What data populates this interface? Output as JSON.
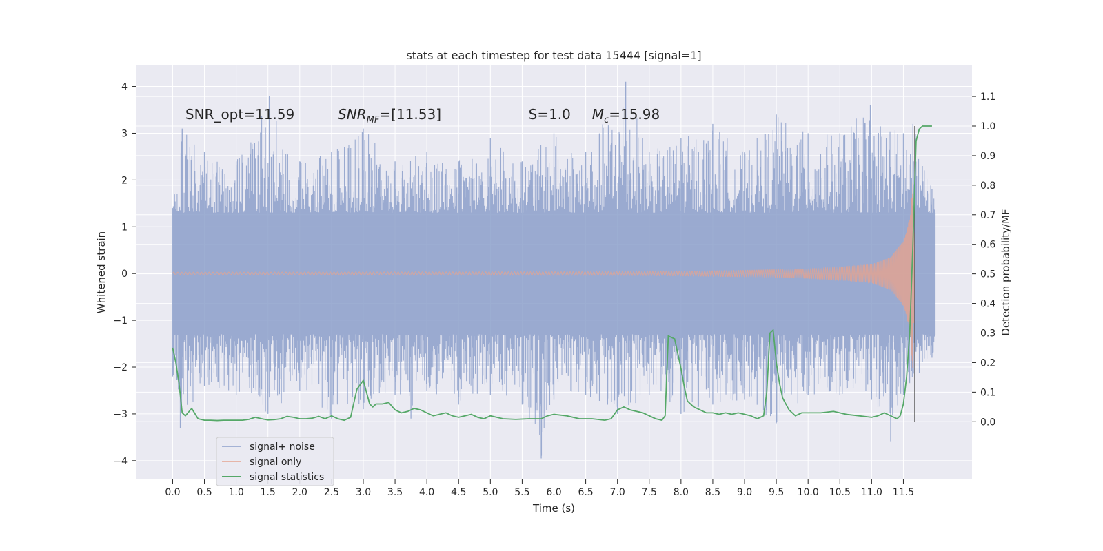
{
  "chart_data": {
    "type": "line",
    "title": "stats at each timestep for test data 15444 [signal=1]",
    "xlabel": "Time (s)",
    "ylabel": "Whitened strain",
    "ylabel_right": "Detection probability/MF",
    "xlim": [
      -0.58,
      12.58
    ],
    "ylim": [
      -4.4,
      4.45
    ],
    "ylim_right": [
      -0.195,
      1.205
    ],
    "x_ticks": [
      0.0,
      0.5,
      1.0,
      1.5,
      2.0,
      2.5,
      3.0,
      3.5,
      4.0,
      4.5,
      5.0,
      5.5,
      6.0,
      6.5,
      7.0,
      7.5,
      8.0,
      8.5,
      9.0,
      9.5,
      10.0,
      10.5,
      11.0,
      11.5
    ],
    "x_tick_labels": [
      "0.0",
      "0.5",
      "1.0",
      "1.5",
      "2.0",
      "2.5",
      "3.0",
      "3.5",
      "4.0",
      "4.5",
      "5.0",
      "5.5",
      "6.0",
      "6.5",
      "7.0",
      "7.5",
      "8.0",
      "8.5",
      "9.0",
      "9.5",
      "10.0",
      "10.5",
      "11.0",
      "11.5"
    ],
    "y_ticks": [
      -4,
      -3,
      -2,
      -1,
      0,
      1,
      2,
      3,
      4
    ],
    "y_tick_labels": [
      "−4",
      "−3",
      "−2",
      "−1",
      "0",
      "1",
      "2",
      "3",
      "4"
    ],
    "y_right_ticks": [
      0.0,
      0.1,
      0.2,
      0.3,
      0.4,
      0.5,
      0.6,
      0.7,
      0.8,
      0.9,
      1.0,
      1.1
    ],
    "y_right_tick_labels": [
      "0.0",
      "0.1",
      "0.2",
      "0.3",
      "0.4",
      "0.5",
      "0.6",
      "0.7",
      "0.8",
      "0.9",
      "1.0",
      "1.1"
    ],
    "grid": true,
    "legend_position": "lower-left",
    "annotations": [
      {
        "text": "SNR_opt=11.59",
        "x": 0.2,
        "y": 3.3
      },
      {
        "text": "SNR_MF=[11.53]",
        "x": 2.6,
        "y": 3.3
      },
      {
        "text": "S=1.0",
        "x": 5.6,
        "y": 3.3
      },
      {
        "text": "M_c=15.98",
        "x": 6.6,
        "y": 3.3
      }
    ],
    "vertical_line": {
      "x": 11.68,
      "y_range_right": [
        0.0,
        1.0
      ],
      "color": "#555555"
    },
    "series": [
      {
        "name": "signal+ noise",
        "axis": "left",
        "kind": "noise-band",
        "color": "#8da0cb",
        "time_range": [
          0.0,
          12.0
        ],
        "band_core": [
          -1.3,
          1.3
        ],
        "envelope_upper": [
          [
            0.0,
            1.4
          ],
          [
            0.15,
            3.1
          ],
          [
            0.5,
            2.6
          ],
          [
            1.0,
            2.4
          ],
          [
            1.52,
            3.8
          ],
          [
            2.0,
            2.4
          ],
          [
            2.5,
            2.6
          ],
          [
            3.0,
            3.1
          ],
          [
            3.5,
            2.4
          ],
          [
            4.0,
            2.6
          ],
          [
            4.5,
            2.4
          ],
          [
            5.0,
            2.9
          ],
          [
            5.5,
            2.4
          ],
          [
            6.0,
            3.0
          ],
          [
            6.5,
            2.6
          ],
          [
            7.13,
            4.1
          ],
          [
            7.5,
            2.6
          ],
          [
            8.0,
            2.9
          ],
          [
            8.5,
            3.2
          ],
          [
            9.0,
            2.6
          ],
          [
            9.5,
            3.4
          ],
          [
            10.0,
            3.0
          ],
          [
            10.5,
            3.0
          ],
          [
            10.98,
            3.6
          ],
          [
            11.5,
            3.0
          ],
          [
            11.65,
            3.2
          ],
          [
            11.95,
            1.8
          ]
        ],
        "envelope_lower": [
          [
            0.0,
            -2.2
          ],
          [
            0.12,
            -3.3
          ],
          [
            0.5,
            -2.4
          ],
          [
            1.0,
            -2.6
          ],
          [
            1.5,
            -3.0
          ],
          [
            2.0,
            -2.5
          ],
          [
            2.5,
            -3.1
          ],
          [
            3.0,
            -2.9
          ],
          [
            3.5,
            -2.6
          ],
          [
            3.75,
            -3.1
          ],
          [
            4.0,
            -2.5
          ],
          [
            4.5,
            -2.8
          ],
          [
            5.0,
            -2.6
          ],
          [
            5.5,
            -2.8
          ],
          [
            5.8,
            -3.95
          ],
          [
            6.0,
            -2.7
          ],
          [
            6.5,
            -2.6
          ],
          [
            7.0,
            -3.0
          ],
          [
            7.5,
            -2.6
          ],
          [
            8.0,
            -3.0
          ],
          [
            8.5,
            -2.8
          ],
          [
            9.0,
            -2.7
          ],
          [
            9.5,
            -3.2
          ],
          [
            10.0,
            -2.6
          ],
          [
            10.5,
            -2.6
          ],
          [
            11.0,
            -2.7
          ],
          [
            11.3,
            -3.6
          ],
          [
            11.5,
            -2.6
          ],
          [
            11.95,
            -1.8
          ]
        ]
      },
      {
        "name": "signal only",
        "axis": "left",
        "kind": "chirp",
        "color": "#e5a38f",
        "amplitude": [
          [
            0.0,
            0.03
          ],
          [
            7.0,
            0.04
          ],
          [
            8.0,
            0.05
          ],
          [
            9.0,
            0.07
          ],
          [
            10.0,
            0.1
          ],
          [
            10.5,
            0.14
          ],
          [
            11.0,
            0.2
          ],
          [
            11.3,
            0.35
          ],
          [
            11.5,
            0.7
          ],
          [
            11.6,
            1.2
          ],
          [
            11.65,
            2.1
          ],
          [
            11.68,
            0.0
          ]
        ]
      },
      {
        "name": "signal statistics",
        "axis": "right",
        "color": "#55a868",
        "x": [
          0.0,
          0.05,
          0.1,
          0.15,
          0.2,
          0.3,
          0.4,
          0.5,
          0.6,
          0.7,
          0.8,
          0.9,
          1.0,
          1.1,
          1.2,
          1.3,
          1.4,
          1.5,
          1.6,
          1.7,
          1.8,
          1.9,
          2.0,
          2.1,
          2.2,
          2.3,
          2.4,
          2.5,
          2.6,
          2.7,
          2.8,
          2.9,
          3.0,
          3.05,
          3.1,
          3.15,
          3.2,
          3.3,
          3.4,
          3.5,
          3.6,
          3.7,
          3.8,
          3.9,
          4.0,
          4.1,
          4.2,
          4.3,
          4.4,
          4.5,
          4.6,
          4.7,
          4.8,
          4.9,
          5.0,
          5.2,
          5.4,
          5.6,
          5.8,
          5.9,
          6.0,
          6.2,
          6.4,
          6.6,
          6.8,
          6.9,
          7.0,
          7.1,
          7.2,
          7.4,
          7.5,
          7.6,
          7.7,
          7.75,
          7.8,
          7.9,
          8.0,
          8.05,
          8.1,
          8.2,
          8.3,
          8.4,
          8.5,
          8.6,
          8.7,
          8.8,
          8.9,
          9.0,
          9.1,
          9.2,
          9.3,
          9.35,
          9.4,
          9.45,
          9.5,
          9.55,
          9.6,
          9.7,
          9.8,
          9.9,
          10.0,
          10.2,
          10.4,
          10.6,
          10.8,
          11.0,
          11.1,
          11.2,
          11.3,
          11.4,
          11.45,
          11.5,
          11.55,
          11.6,
          11.65,
          11.7,
          11.75,
          11.8,
          11.85,
          11.9,
          11.95
        ],
        "values": [
          0.25,
          0.2,
          0.13,
          0.03,
          0.02,
          0.045,
          0.01,
          0.005,
          0.005,
          0.004,
          0.005,
          0.005,
          0.005,
          0.005,
          0.008,
          0.015,
          0.01,
          0.006,
          0.007,
          0.01,
          0.018,
          0.015,
          0.01,
          0.01,
          0.012,
          0.018,
          0.01,
          0.02,
          0.01,
          0.005,
          0.015,
          0.11,
          0.14,
          0.1,
          0.06,
          0.05,
          0.06,
          0.06,
          0.065,
          0.04,
          0.03,
          0.035,
          0.045,
          0.04,
          0.03,
          0.02,
          0.025,
          0.03,
          0.02,
          0.015,
          0.02,
          0.025,
          0.015,
          0.01,
          0.02,
          0.01,
          0.008,
          0.01,
          0.01,
          0.02,
          0.025,
          0.02,
          0.01,
          0.01,
          0.005,
          0.01,
          0.04,
          0.05,
          0.04,
          0.03,
          0.02,
          0.01,
          0.005,
          0.02,
          0.29,
          0.28,
          0.18,
          0.12,
          0.07,
          0.05,
          0.04,
          0.03,
          0.03,
          0.025,
          0.03,
          0.025,
          0.03,
          0.025,
          0.02,
          0.01,
          0.02,
          0.1,
          0.3,
          0.31,
          0.2,
          0.13,
          0.08,
          0.04,
          0.02,
          0.03,
          0.03,
          0.03,
          0.035,
          0.025,
          0.02,
          0.015,
          0.02,
          0.03,
          0.02,
          0.01,
          0.02,
          0.06,
          0.15,
          0.3,
          0.6,
          0.95,
          0.99,
          1.0,
          1.0,
          1.0,
          1.0
        ]
      }
    ]
  }
}
